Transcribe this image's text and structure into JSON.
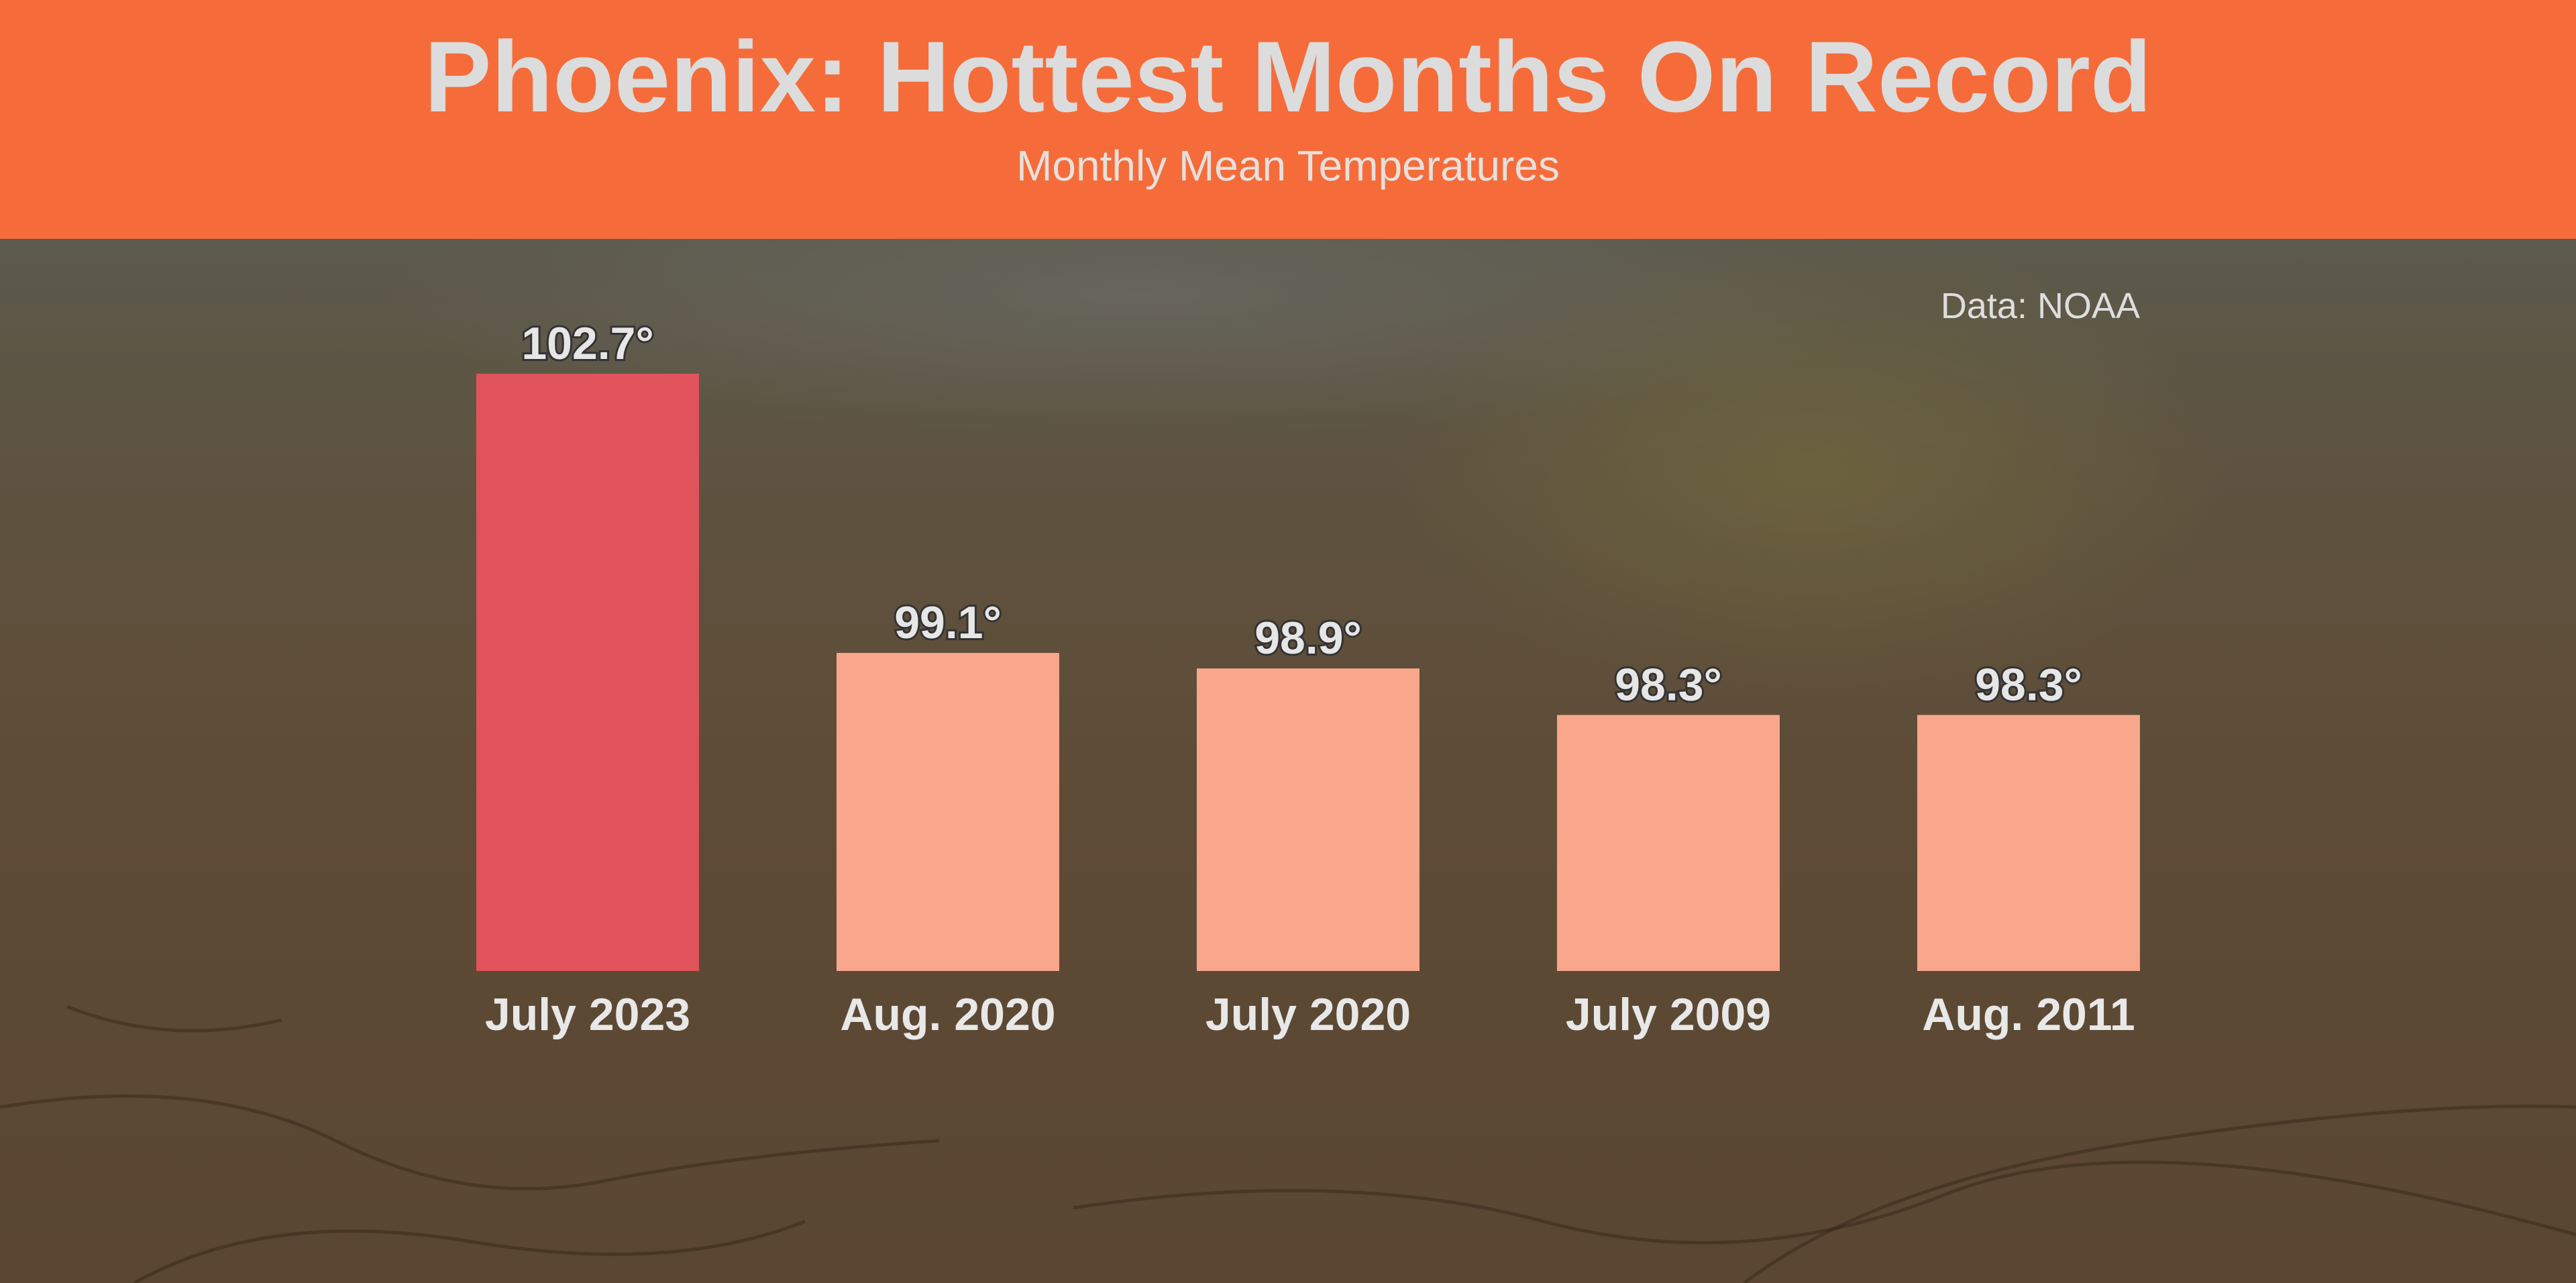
{
  "chart_data": {
    "type": "bar",
    "title": "Phoenix: Hottest Months On Record",
    "subtitle": "Monthly Mean Temperatures",
    "source": "Data: NOAA",
    "categories": [
      "July 2023",
      "Aug. 2020",
      "July 2020",
      "July 2009",
      "Aug. 2011"
    ],
    "values": [
      102.7,
      99.1,
      98.9,
      98.3,
      98.3
    ],
    "value_labels": [
      "102.7°",
      "99.1°",
      "98.9°",
      "98.3°",
      "98.3°"
    ],
    "xlabel": "",
    "ylabel": "",
    "ylim": [
      95,
      102.7
    ],
    "grid": false,
    "colors": {
      "highlight": "#e0535a",
      "default": "#f8a78c",
      "header": "#f56c3a"
    }
  }
}
